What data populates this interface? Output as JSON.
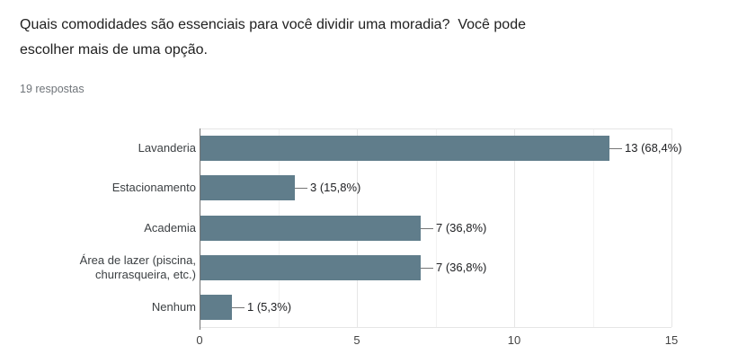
{
  "header": {
    "title_lines": [
      "Quais comodidades são essenciais para você dividir uma moradia?  Você pode",
      "escolher mais de uma opção."
    ],
    "responses_label": "19 respostas"
  },
  "chart_data": {
    "type": "bar",
    "orientation": "horizontal",
    "title": "Quais comodidades são essenciais para você dividir uma moradia?  Você pode escolher mais de uma opção.",
    "responses_count": 19,
    "categories": [
      "Lavanderia",
      "Estacionamento",
      "Academia",
      "Área de lazer (piscina,\nchurrasqueira, etc.)",
      "Nenhum"
    ],
    "values": [
      13,
      3,
      7,
      7,
      1
    ],
    "value_labels": [
      "13 (68,4%)",
      "3 (15,8%)",
      "7 (36,8%)",
      "7 (36,8%)",
      "1 (5,3%)"
    ],
    "x_ticks": [
      0,
      5,
      10,
      15
    ],
    "xlim": [
      0,
      15
    ],
    "grid": true,
    "legend_position": "none",
    "colors": {
      "bar": "#607d8b",
      "axis_line": "#757575",
      "grid_major": "#e6e6e6",
      "grid_minor": "#f2f2f2",
      "title_text": "#212121",
      "responses_text": "#70757a",
      "category_text": "#3c4043",
      "value_text": "#202124",
      "tick_text": "#444444"
    }
  }
}
